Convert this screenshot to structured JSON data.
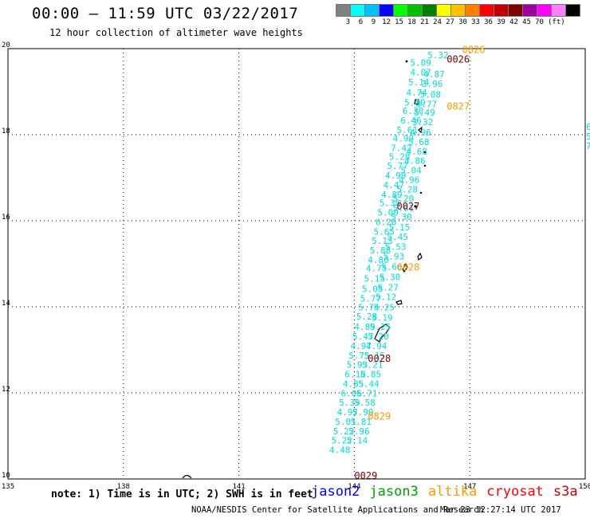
{
  "header": {
    "title": "00:00 – 11:59 UTC 03/22/2017",
    "subtitle": "12 hour collection of altimeter wave heights"
  },
  "legend": {
    "colors": [
      "#808080",
      "#00ffff",
      "#00c0ff",
      "#0000ff",
      "#00ff00",
      "#00c000",
      "#008000",
      "#ffff00",
      "#ffc000",
      "#ff8000",
      "#ff0000",
      "#c00000",
      "#800000",
      "#a000a0",
      "#ff00ff",
      "#ff80ff",
      "#000000"
    ],
    "labels": [
      "3",
      "6",
      "9",
      "12",
      "15",
      "18",
      "21",
      "24",
      "27",
      "30",
      "33",
      "36",
      "39",
      "42",
      "45",
      "70"
    ],
    "unit": "(ft)"
  },
  "map": {
    "lon_ticks": [
      "135",
      "138",
      "141",
      "144",
      "147",
      "150"
    ],
    "lat_ticks": [
      "20",
      "18",
      "16",
      "14",
      "12",
      "10"
    ],
    "lon_range": [
      135,
      150
    ],
    "lat_range": [
      10,
      20
    ],
    "wave_labels": [
      {
        "lon": 145.9,
        "lat": 19.78,
        "v": "5.32"
      },
      {
        "lon": 145.45,
        "lat": 19.6,
        "v": "5.09"
      },
      {
        "lon": 145.45,
        "lat": 19.38,
        "v": "4.07"
      },
      {
        "lon": 145.8,
        "lat": 19.33,
        "v": "4.87"
      },
      {
        "lon": 145.4,
        "lat": 19.15,
        "v": "5.14"
      },
      {
        "lon": 145.75,
        "lat": 19.11,
        "v": "3.96"
      },
      {
        "lon": 145.35,
        "lat": 18.91,
        "v": "4.74"
      },
      {
        "lon": 145.7,
        "lat": 18.86,
        "v": "5.08"
      },
      {
        "lon": 145.3,
        "lat": 18.68,
        "v": "5.80"
      },
      {
        "lon": 145.6,
        "lat": 18.64,
        "v": "3.77"
      },
      {
        "lon": 145.25,
        "lat": 18.48,
        "v": "6.30"
      },
      {
        "lon": 145.55,
        "lat": 18.44,
        "v": "5.49"
      },
      {
        "lon": 145.2,
        "lat": 18.26,
        "v": "6.46"
      },
      {
        "lon": 145.5,
        "lat": 18.22,
        "v": "3.32"
      },
      {
        "lon": 145.1,
        "lat": 18.04,
        "v": "5.61"
      },
      {
        "lon": 145.45,
        "lat": 17.98,
        "v": "4.96"
      },
      {
        "lon": 145.0,
        "lat": 17.84,
        "v": "4.99"
      },
      {
        "lon": 145.4,
        "lat": 17.76,
        "v": "5.68"
      },
      {
        "lon": 144.95,
        "lat": 17.62,
        "v": "7.42"
      },
      {
        "lon": 145.35,
        "lat": 17.54,
        "v": "4.68"
      },
      {
        "lon": 144.9,
        "lat": 17.42,
        "v": "5.28"
      },
      {
        "lon": 145.3,
        "lat": 17.32,
        "v": "4.86"
      },
      {
        "lon": 144.85,
        "lat": 17.2,
        "v": "5.77"
      },
      {
        "lon": 145.2,
        "lat": 17.1,
        "v": "5.04"
      },
      {
        "lon": 144.8,
        "lat": 16.98,
        "v": "4.99"
      },
      {
        "lon": 145.15,
        "lat": 16.88,
        "v": "4.96"
      },
      {
        "lon": 144.75,
        "lat": 16.76,
        "v": "4.47"
      },
      {
        "lon": 145.1,
        "lat": 16.66,
        "v": "5.28"
      },
      {
        "lon": 144.7,
        "lat": 16.54,
        "v": "4.89"
      },
      {
        "lon": 145.0,
        "lat": 16.44,
        "v": "5.20"
      },
      {
        "lon": 144.65,
        "lat": 16.34,
        "v": "5.38"
      },
      {
        "lon": 145.0,
        "lat": 16.22,
        "v": "5.61"
      },
      {
        "lon": 144.6,
        "lat": 16.12,
        "v": "5.09"
      },
      {
        "lon": 144.95,
        "lat": 16.02,
        "v": "5.30"
      },
      {
        "lon": 144.55,
        "lat": 15.9,
        "v": "6.26"
      },
      {
        "lon": 144.9,
        "lat": 15.78,
        "v": "5.15"
      },
      {
        "lon": 144.5,
        "lat": 15.68,
        "v": "5.65"
      },
      {
        "lon": 144.85,
        "lat": 15.56,
        "v": "5.45"
      },
      {
        "lon": 144.45,
        "lat": 15.46,
        "v": "5.13"
      },
      {
        "lon": 144.8,
        "lat": 15.32,
        "v": "5.53"
      },
      {
        "lon": 144.4,
        "lat": 15.24,
        "v": "5.88"
      },
      {
        "lon": 144.75,
        "lat": 15.1,
        "v": "5.93"
      },
      {
        "lon": 144.35,
        "lat": 15.02,
        "v": "4.80"
      },
      {
        "lon": 144.7,
        "lat": 14.86,
        "v": "5.66"
      },
      {
        "lon": 144.3,
        "lat": 14.82,
        "v": "4.75"
      },
      {
        "lon": 144.65,
        "lat": 14.62,
        "v": "5.30"
      },
      {
        "lon": 144.25,
        "lat": 14.58,
        "v": "5.15"
      },
      {
        "lon": 144.6,
        "lat": 14.38,
        "v": "5.27"
      },
      {
        "lon": 144.2,
        "lat": 14.34,
        "v": "5.05"
      },
      {
        "lon": 144.55,
        "lat": 14.16,
        "v": "5.12"
      },
      {
        "lon": 144.15,
        "lat": 14.12,
        "v": "5.77"
      },
      {
        "lon": 144.5,
        "lat": 13.92,
        "v": "5.25"
      },
      {
        "lon": 144.1,
        "lat": 13.92,
        "v": "5.74"
      },
      {
        "lon": 144.45,
        "lat": 13.68,
        "v": "5.19"
      },
      {
        "lon": 144.05,
        "lat": 13.7,
        "v": "5.28"
      },
      {
        "lon": 144.4,
        "lat": 13.46,
        "v": "5.25"
      },
      {
        "lon": 144.0,
        "lat": 13.46,
        "v": "4.89"
      },
      {
        "lon": 144.35,
        "lat": 13.24,
        "v": "5.20"
      },
      {
        "lon": 143.95,
        "lat": 13.24,
        "v": "5.47"
      },
      {
        "lon": 144.3,
        "lat": 13.02,
        "v": "4.94"
      },
      {
        "lon": 143.9,
        "lat": 13.02,
        "v": "4.97"
      },
      {
        "lon": 144.25,
        "lat": 12.8,
        "v": "5.15"
      },
      {
        "lon": 143.85,
        "lat": 12.8,
        "v": "5.75"
      },
      {
        "lon": 144.2,
        "lat": 12.58,
        "v": "5.21"
      },
      {
        "lon": 143.8,
        "lat": 12.58,
        "v": "5.93"
      },
      {
        "lon": 144.15,
        "lat": 12.36,
        "v": "5.85"
      },
      {
        "lon": 143.75,
        "lat": 12.36,
        "v": "6.18"
      },
      {
        "lon": 144.1,
        "lat": 12.14,
        "v": "5.44"
      },
      {
        "lon": 143.7,
        "lat": 12.14,
        "v": "4.85"
      },
      {
        "lon": 144.05,
        "lat": 11.92,
        "v": "5.71"
      },
      {
        "lon": 143.65,
        "lat": 11.92,
        "v": "6.06"
      },
      {
        "lon": 144.0,
        "lat": 11.7,
        "v": "5.58"
      },
      {
        "lon": 143.6,
        "lat": 11.7,
        "v": "5.39"
      },
      {
        "lon": 143.95,
        "lat": 11.48,
        "v": "5.90"
      },
      {
        "lon": 143.55,
        "lat": 11.48,
        "v": "4.97"
      },
      {
        "lon": 143.9,
        "lat": 11.26,
        "v": "5.81"
      },
      {
        "lon": 143.5,
        "lat": 11.26,
        "v": "5.01"
      },
      {
        "lon": 143.85,
        "lat": 11.04,
        "v": "5.96"
      },
      {
        "lon": 143.45,
        "lat": 11.04,
        "v": "5.22"
      },
      {
        "lon": 143.8,
        "lat": 10.82,
        "v": "5.14"
      },
      {
        "lon": 143.4,
        "lat": 10.82,
        "v": "5.22"
      },
      {
        "lon": 143.35,
        "lat": 10.6,
        "v": "4.48"
      }
    ],
    "pass_labels": [
      {
        "lon": 146.8,
        "lat": 19.9,
        "v": "0826",
        "c": "#ff9900"
      },
      {
        "lon": 146.4,
        "lat": 19.68,
        "v": "0026",
        "c": "#800000"
      },
      {
        "lon": 146.4,
        "lat": 18.58,
        "v": "0827",
        "c": "#ff9900"
      },
      {
        "lon": 145.1,
        "lat": 16.26,
        "v": "0027",
        "c": "#800000"
      },
      {
        "lon": 145.1,
        "lat": 14.84,
        "v": "0828",
        "c": "#ff9900"
      },
      {
        "lon": 144.35,
        "lat": 12.72,
        "v": "0028",
        "c": "#800000"
      },
      {
        "lon": 144.35,
        "lat": 11.38,
        "v": "0829",
        "c": "#ff9900"
      },
      {
        "lon": 144.0,
        "lat": 10.0,
        "v": "0029",
        "c": "#800000"
      }
    ]
  },
  "footer": {
    "note": "note: 1) Time is in UTC; 2) SWH is in feet",
    "satellites": [
      {
        "name": "jason2",
        "color": "#0000ff"
      },
      {
        "name": "jason3",
        "color": "#00a000"
      },
      {
        "name": "altika",
        "color": "#ff9900"
      },
      {
        "name": "cryosat",
        "color": "#ff0000"
      },
      {
        "name": "s3a",
        "color": "#cc0000"
      }
    ],
    "credit": "NOAA/NESDIS Center for Satellite Applications and Research",
    "timestamp": "Mar 23 12:27:14 UTC 2017"
  }
}
